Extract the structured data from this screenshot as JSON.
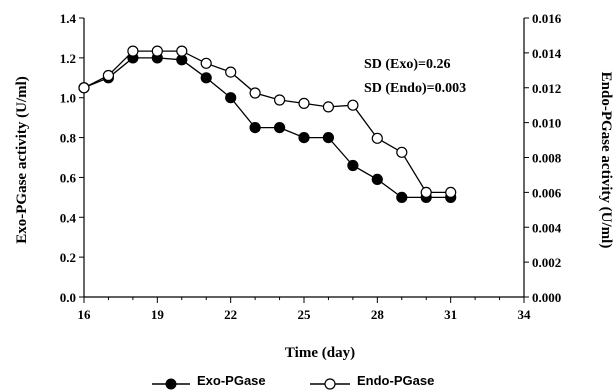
{
  "chart_data": {
    "type": "line",
    "xlabel": "Time (day)",
    "ylabel_left": "Exo-PGase activity  (U/ml)",
    "ylabel_right": "Endo-PGase activity (U/ml)",
    "xlim": [
      16,
      34
    ],
    "ylim_left": [
      0,
      1.4
    ],
    "ylim_right": [
      0,
      0.016
    ],
    "x_ticks": [
      "16",
      "19",
      "22",
      "25",
      "28",
      "31",
      "34"
    ],
    "y_ticks_left": [
      "0.0",
      "0.2",
      "0.4",
      "0.6",
      "0.8",
      "1.0",
      "1.2",
      "1.4"
    ],
    "y_ticks_right": [
      "0.000",
      "0.002",
      "0.004",
      "0.006",
      "0.008",
      "0.010",
      "0.012",
      "0.014",
      "0.016"
    ],
    "grid": false,
    "legend_position": "bottom",
    "annotations": [
      "SD (Exo)=0.26",
      "SD (Endo)=0.003"
    ],
    "series": [
      {
        "name": "Exo-PGase",
        "axis": "left",
        "marker": "filled-circle",
        "x": [
          16,
          17,
          18,
          19,
          20,
          21,
          22,
          23,
          24,
          25,
          26,
          27,
          28,
          29,
          30,
          31
        ],
        "y": [
          1.05,
          1.1,
          1.2,
          1.2,
          1.19,
          1.1,
          1.0,
          0.85,
          0.85,
          0.8,
          0.8,
          0.66,
          0.59,
          0.5,
          0.5,
          0.5
        ]
      },
      {
        "name": "Endo-PGase",
        "axis": "right",
        "marker": "open-circle",
        "x": [
          16,
          17,
          18,
          19,
          20,
          21,
          22,
          23,
          24,
          25,
          26,
          27,
          28,
          29,
          30,
          31
        ],
        "y": [
          0.012,
          0.0127,
          0.0141,
          0.0141,
          0.0141,
          0.0134,
          0.0129,
          0.0117,
          0.0113,
          0.0111,
          0.0109,
          0.011,
          0.0091,
          0.0083,
          0.006,
          0.006
        ]
      }
    ]
  }
}
